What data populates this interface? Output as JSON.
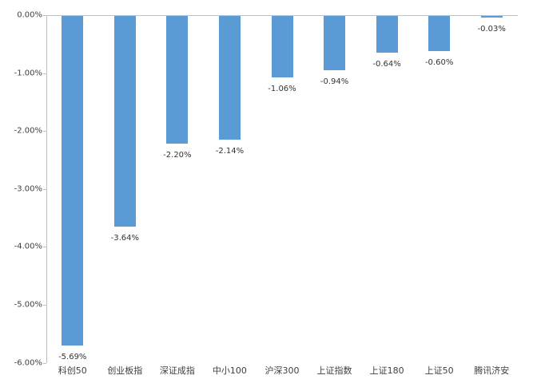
{
  "chart_data": {
    "type": "bar",
    "title": "",
    "xlabel": "",
    "ylabel": "",
    "categories": [
      "科创50",
      "创业板指",
      "深证成指",
      "中小100",
      "沪深300",
      "上证指数",
      "上证180",
      "上证50",
      "腾讯济安"
    ],
    "values": [
      -5.69,
      -3.64,
      -2.2,
      -2.14,
      -1.06,
      -0.94,
      -0.64,
      -0.6,
      -0.03
    ],
    "value_labels": [
      "-5.69%",
      "-3.64%",
      "-2.20%",
      "-2.14%",
      "-1.06%",
      "-0.94%",
      "-0.64%",
      "-0.60%",
      "-0.03%"
    ],
    "y_axis": {
      "tick_labels": [
        "0.00%",
        "-1.00%",
        "-2.00%",
        "-3.00%",
        "-4.00%",
        "-5.00%",
        "-6.00%"
      ],
      "ylim": [
        -6,
        0
      ]
    },
    "legend": null,
    "grid": false,
    "data_label_position": "outside-end",
    "colors": {
      "bar": "#5b9bd5",
      "axis": "#bfbfbf",
      "text": "#404040"
    }
  }
}
